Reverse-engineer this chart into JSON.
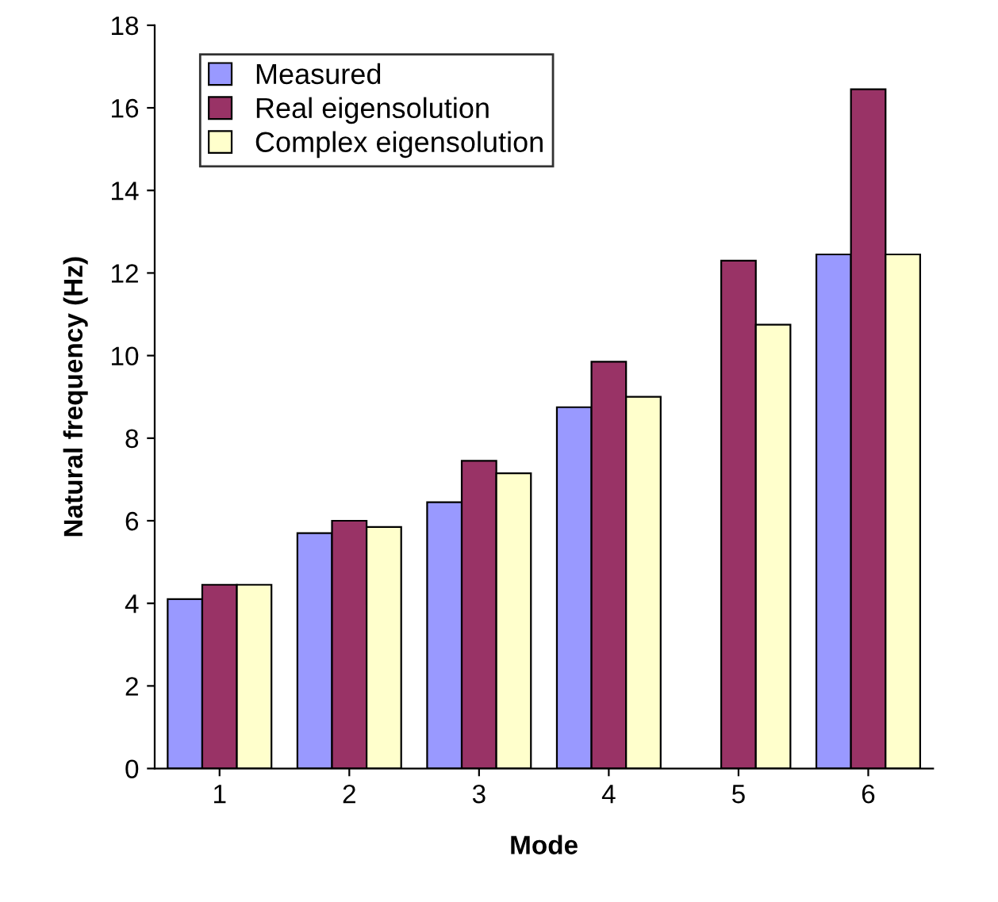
{
  "chart_data": {
    "type": "bar",
    "xlabel": "Mode",
    "ylabel": "Natural frequency (Hz)",
    "categories": [
      "1",
      "2",
      "3",
      "4",
      "5",
      "6"
    ],
    "series": [
      {
        "name": "Measured",
        "color": "#9999ff",
        "values": [
          4.1,
          5.7,
          6.45,
          8.75,
          null,
          12.45
        ]
      },
      {
        "name": "Real eigensolution",
        "color": "#993366",
        "values": [
          4.45,
          6.0,
          7.45,
          9.85,
          12.3,
          16.45
        ]
      },
      {
        "name": "Complex eigensolution",
        "color": "#ffffcc",
        "values": [
          4.45,
          5.85,
          7.15,
          9.0,
          10.75,
          12.45
        ]
      }
    ],
    "ylim": [
      0,
      18
    ],
    "yticks": [
      0,
      2,
      4,
      6,
      8,
      10,
      12,
      14,
      16,
      18
    ],
    "grid": false,
    "legend": "top left"
  }
}
